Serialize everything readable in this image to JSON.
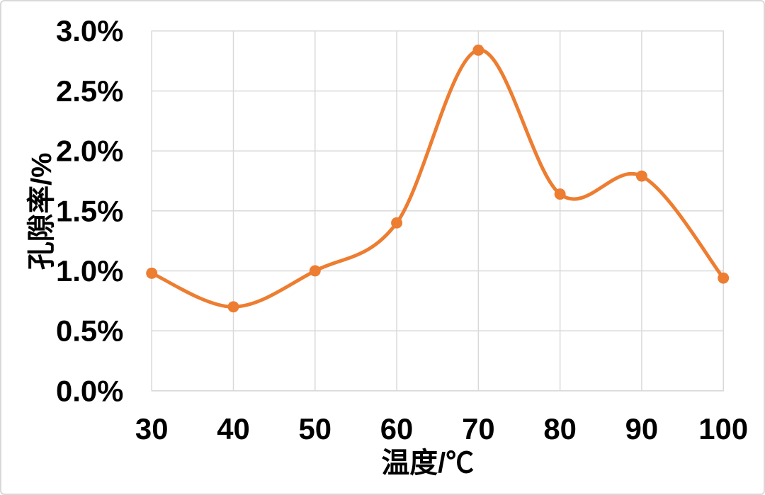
{
  "chart_data": {
    "type": "line",
    "title": "",
    "xlabel": "温度/℃",
    "ylabel": "孔隙率/%",
    "x": [
      30,
      40,
      50,
      60,
      70,
      80,
      90,
      100
    ],
    "values": [
      0.98,
      0.7,
      1.0,
      1.4,
      2.84,
      1.64,
      1.79,
      0.94
    ],
    "x_tick_labels": [
      "30",
      "40",
      "50",
      "60",
      "70",
      "80",
      "90",
      "100"
    ],
    "y_ticks": [
      0.0,
      0.5,
      1.0,
      1.5,
      2.0,
      2.5,
      3.0
    ],
    "y_tick_labels": [
      "0.0%",
      "0.5%",
      "1.0%",
      "1.5%",
      "2.0%",
      "2.5%",
      "3.0%"
    ],
    "xlim": [
      30,
      100
    ],
    "ylim": [
      0.0,
      3.0
    ],
    "grid": true,
    "legend": "none",
    "line_style": "smooth",
    "marker": "circle",
    "colors": {
      "line": "#ED7D31",
      "marker": "#ED7D31",
      "grid": "#D9D9D9",
      "text": "#000000",
      "background": "#FFFFFF",
      "frame_border": "#D9D9D9"
    }
  }
}
